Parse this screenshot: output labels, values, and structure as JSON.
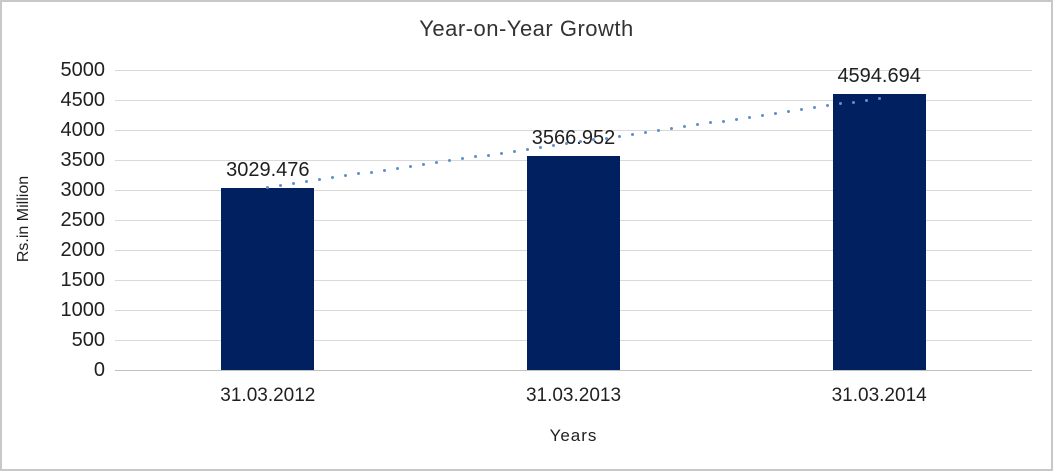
{
  "chart_data": {
    "type": "bar",
    "title": "Year-on-Year Growth",
    "categories": [
      "31.03.2012",
      "31.03.2013",
      "31.03.2014"
    ],
    "values": [
      3029.476,
      3566.952,
      4594.694
    ],
    "data_labels": [
      "3029.476",
      "3566.952",
      "4594.694"
    ],
    "xlabel": "Years",
    "ylabel": "Rs.in Million",
    "ylim": [
      0,
      5000
    ],
    "ytick_step": 500,
    "yticks": [
      0,
      500,
      1000,
      1500,
      2000,
      2500,
      3000,
      3500,
      4000,
      4500,
      5000
    ],
    "grid": "horizontal",
    "legend": "none",
    "trendline": {
      "type": "linear",
      "style": "dotted",
      "spans": "first bar top to third bar top"
    },
    "colors": {
      "bar": "#002060",
      "trendline": "#5b91cf",
      "gridline": "#d9d9d9",
      "axis_line": "#bfbfbf",
      "text": "#1f1f1f",
      "title_text": "#333333",
      "border": "#c8c8c8",
      "background": "#ffffff"
    }
  }
}
